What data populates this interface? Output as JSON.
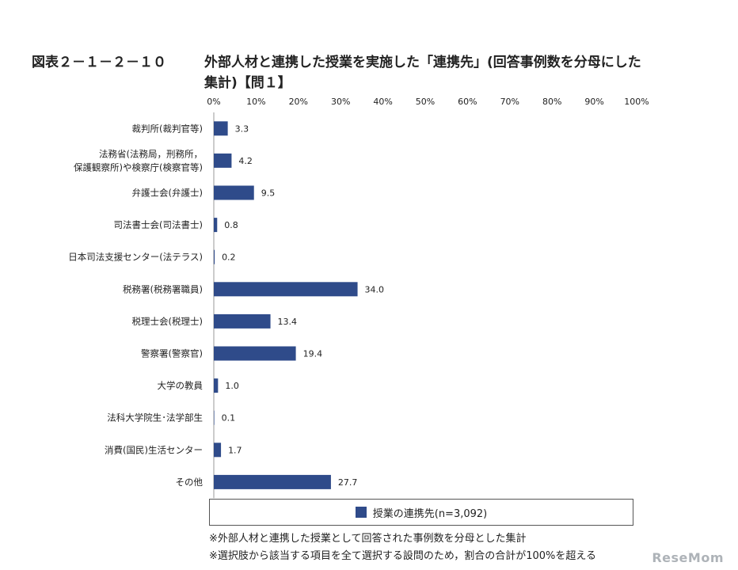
{
  "title": {
    "number": "図表２－１－２－１０",
    "line1": "外部人材と連携した授業を実施した「連携先」(回答事例数を分母にした",
    "line2": "集計)【問１】"
  },
  "chart_data": {
    "type": "bar",
    "orientation": "horizontal",
    "categories": [
      "裁判所(裁判官等)",
      "法務省(法務局，刑務所，保護観察所)や検察庁(検察官等)",
      "弁護士会(弁護士)",
      "司法書士会(司法書士)",
      "日本司法支援センター(法テラス)",
      "税務署(税務署職員)",
      "税理士会(税理士)",
      "警察署(警察官)",
      "大学の教員",
      "法科大学院生･法学部生",
      "消費(国民)生活センター",
      "その他"
    ],
    "category_lines": [
      [
        "裁判所(裁判官等)"
      ],
      [
        "法務省(法務局，刑務所，",
        "保護観察所)や検察庁(検察官等)"
      ],
      [
        "弁護士会(弁護士)"
      ],
      [
        "司法書士会(司法書士)"
      ],
      [
        "日本司法支援センター(法テラス)"
      ],
      [
        "税務署(税務署職員)"
      ],
      [
        "税理士会(税理士)"
      ],
      [
        "警察署(警察官)"
      ],
      [
        "大学の教員"
      ],
      [
        "法科大学院生･法学部生"
      ],
      [
        "消費(国民)生活センター"
      ],
      [
        "その他"
      ]
    ],
    "series": [
      {
        "name": "授業の連携先(n=3,092)",
        "values": [
          3.3,
          4.2,
          9.5,
          0.8,
          0.2,
          34.0,
          13.4,
          19.4,
          1.0,
          0.1,
          1.7,
          27.7
        ],
        "labels": [
          "3.3",
          "4.2",
          "9.5",
          "0.8",
          "0.2",
          "34.0",
          "13.4",
          "19.4",
          "1.0",
          "0.1",
          "1.7",
          "27.7"
        ]
      }
    ],
    "xlim": [
      0,
      100
    ],
    "x_ticks": [
      "0%",
      "10%",
      "20%",
      "30%",
      "40%",
      "50%",
      "60%",
      "70%",
      "80%",
      "90%",
      "100%"
    ],
    "legend_position": "bottom",
    "grid": false,
    "bar_color": "#2f4b8a"
  },
  "legend": {
    "label": "授業の連携先(n=3,092)"
  },
  "notes": [
    "※外部人材と連携した授業として回答された事例数を分母とした集計",
    "※選択肢から該当する項目を全て選択する設問のため，割合の合計が100%を超える"
  ],
  "watermark": "ReseMom"
}
